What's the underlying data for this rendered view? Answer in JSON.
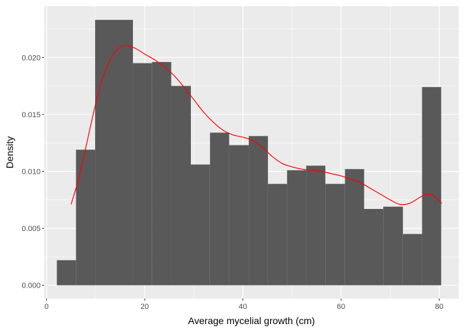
{
  "chart_data": {
    "type": "bar",
    "xlabel": "Average mycelial growth (cm)",
    "ylabel": "Density",
    "xlim": [
      -0.5,
      84
    ],
    "ylim": [
      -0.00117,
      0.0245
    ],
    "x_ticks": [
      0,
      20,
      40,
      60,
      80
    ],
    "x_tick_labels": [
      "0",
      "20",
      "40",
      "60",
      "80"
    ],
    "y_ticks": [
      0,
      0.005,
      0.01,
      0.015,
      0.02
    ],
    "y_tick_labels": [
      "0.000",
      "0.005",
      "0.010",
      "0.015",
      "0.020"
    ],
    "grid": true,
    "bars": [
      {
        "x0": 2.1,
        "x1": 6.0,
        "value": 0.0022
      },
      {
        "x0": 6.0,
        "x1": 9.9,
        "value": 0.0119
      },
      {
        "x0": 9.9,
        "x1": 17.6,
        "value": 0.0233
      },
      {
        "x0": 17.6,
        "x1": 21.5,
        "value": 0.0195
      },
      {
        "x0": 21.5,
        "x1": 25.4,
        "value": 0.0196
      },
      {
        "x0": 25.4,
        "x1": 29.4,
        "value": 0.0175
      },
      {
        "x0": 29.4,
        "x1": 33.3,
        "value": 0.0106
      },
      {
        "x0": 33.3,
        "x1": 37.2,
        "value": 0.0134
      },
      {
        "x0": 37.2,
        "x1": 41.2,
        "value": 0.0123
      },
      {
        "x0": 41.2,
        "x1": 45.1,
        "value": 0.0131
      },
      {
        "x0": 45.1,
        "x1": 49.0,
        "value": 0.0089
      },
      {
        "x0": 49.0,
        "x1": 52.9,
        "value": 0.0101
      },
      {
        "x0": 52.9,
        "x1": 56.8,
        "value": 0.0105
      },
      {
        "x0": 56.8,
        "x1": 60.8,
        "value": 0.0089
      },
      {
        "x0": 60.8,
        "x1": 64.7,
        "value": 0.0102
      },
      {
        "x0": 64.7,
        "x1": 68.6,
        "value": 0.0067
      },
      {
        "x0": 68.6,
        "x1": 72.6,
        "value": 0.0069
      },
      {
        "x0": 72.6,
        "x1": 76.5,
        "value": 0.0045
      },
      {
        "x0": 76.5,
        "x1": 80.4,
        "value": 0.0174
      }
    ],
    "density_curve": {
      "x": [
        5.0,
        6.5,
        8.0,
        9.5,
        11.0,
        12.5,
        14.0,
        15.5,
        17.0,
        18.5,
        20.0,
        22.0,
        24.0,
        26.0,
        28.0,
        30.0,
        32.0,
        34.0,
        36.0,
        38.0,
        40.0,
        42.0,
        44.0,
        46.0,
        48.0,
        50.0,
        52.0,
        54.0,
        56.0,
        58.0,
        60.0,
        62.0,
        64.0,
        66.0,
        68.0,
        70.0,
        72.0,
        74.0,
        76.0,
        77.5,
        79.0,
        80.5
      ],
      "y": [
        0.0071,
        0.0093,
        0.0121,
        0.015,
        0.0176,
        0.0194,
        0.0205,
        0.021,
        0.021,
        0.0207,
        0.0203,
        0.0198,
        0.0192,
        0.0184,
        0.0174,
        0.0163,
        0.0152,
        0.0143,
        0.0136,
        0.0132,
        0.013,
        0.0127,
        0.0121,
        0.0113,
        0.0107,
        0.0104,
        0.0102,
        0.0101,
        0.01,
        0.0098,
        0.0096,
        0.0093,
        0.009,
        0.0085,
        0.008,
        0.0075,
        0.0071,
        0.0072,
        0.0077,
        0.008,
        0.0078,
        0.0072
      ],
      "color": "#ff0000"
    },
    "colors": {
      "panel_background": "#ebebeb",
      "grid_major": "#ffffff",
      "bar_fill": "#595959",
      "tick_text": "#4d4d4d",
      "axis_tick": "#333333"
    }
  }
}
